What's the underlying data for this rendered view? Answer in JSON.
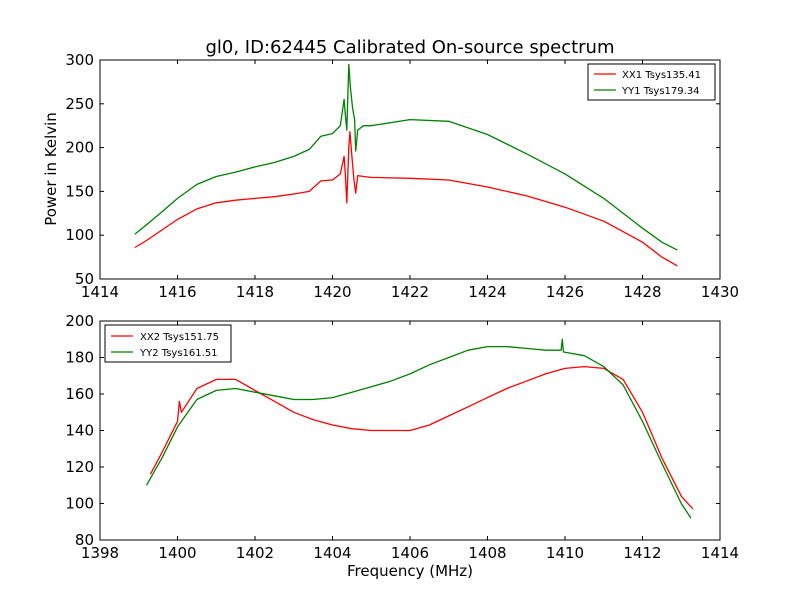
{
  "chart_data": [
    {
      "type": "line",
      "title": "gl0, ID:62445 Calibrated On-source spectrum",
      "xlabel": "",
      "ylabel": "Power in Kelvin",
      "xlim": [
        1414,
        1430
      ],
      "ylim": [
        50,
        300
      ],
      "xticks": [
        1414,
        1416,
        1418,
        1420,
        1422,
        1424,
        1426,
        1428,
        1430
      ],
      "yticks": [
        50,
        100,
        150,
        200,
        250,
        300
      ],
      "legend_position": "top-right",
      "series": [
        {
          "name": "XX1 Tsys135.41",
          "color": "#ff0000",
          "points": [
            [
              1414.9,
              86
            ],
            [
              1415.2,
              94
            ],
            [
              1415.5,
              103
            ],
            [
              1416.0,
              118
            ],
            [
              1416.5,
              130
            ],
            [
              1417.0,
              137
            ],
            [
              1417.5,
              140
            ],
            [
              1418.0,
              142
            ],
            [
              1418.5,
              144
            ],
            [
              1419.0,
              147
            ],
            [
              1419.4,
              150
            ],
            [
              1419.7,
              162
            ],
            [
              1420.0,
              163
            ],
            [
              1420.2,
              170
            ],
            [
              1420.3,
              190
            ],
            [
              1420.33,
              170
            ],
            [
              1420.37,
              137
            ],
            [
              1420.42,
              200
            ],
            [
              1420.45,
              218
            ],
            [
              1420.5,
              190
            ],
            [
              1420.55,
              165
            ],
            [
              1420.6,
              148
            ],
            [
              1420.65,
              168
            ],
            [
              1420.8,
              167
            ],
            [
              1421.0,
              166
            ],
            [
              1422.0,
              165
            ],
            [
              1423.0,
              163
            ],
            [
              1424.0,
              155
            ],
            [
              1425.0,
              145
            ],
            [
              1426.0,
              132
            ],
            [
              1427.0,
              116
            ],
            [
              1428.0,
              92
            ],
            [
              1428.5,
              75
            ],
            [
              1428.9,
              65
            ]
          ]
        },
        {
          "name": "YY1 Tsys179.34",
          "color": "#008000",
          "points": [
            [
              1414.9,
              101
            ],
            [
              1415.2,
              112
            ],
            [
              1415.5,
              123
            ],
            [
              1416.0,
              142
            ],
            [
              1416.5,
              158
            ],
            [
              1417.0,
              167
            ],
            [
              1417.5,
              172
            ],
            [
              1418.0,
              178
            ],
            [
              1418.5,
              183
            ],
            [
              1419.0,
              190
            ],
            [
              1419.4,
              198
            ],
            [
              1419.7,
              213
            ],
            [
              1420.0,
              216
            ],
            [
              1420.2,
              225
            ],
            [
              1420.3,
              255
            ],
            [
              1420.33,
              238
            ],
            [
              1420.37,
              220
            ],
            [
              1420.42,
              295
            ],
            [
              1420.46,
              270
            ],
            [
              1420.52,
              245
            ],
            [
              1420.57,
              232
            ],
            [
              1420.6,
              196
            ],
            [
              1420.65,
              220
            ],
            [
              1420.8,
              225
            ],
            [
              1421.0,
              225
            ],
            [
              1422.0,
              232
            ],
            [
              1423.0,
              230
            ],
            [
              1424.0,
              215
            ],
            [
              1425.0,
              193
            ],
            [
              1426.0,
              170
            ],
            [
              1427.0,
              142
            ],
            [
              1428.0,
              108
            ],
            [
              1428.5,
              92
            ],
            [
              1428.9,
              83
            ]
          ]
        }
      ]
    },
    {
      "type": "line",
      "title": "",
      "xlabel": "Frequency (MHz)",
      "ylabel": "",
      "xlim": [
        1398,
        1414
      ],
      "ylim": [
        80,
        200
      ],
      "xticks": [
        1398,
        1400,
        1402,
        1404,
        1406,
        1408,
        1410,
        1412,
        1414
      ],
      "yticks": [
        80,
        100,
        120,
        140,
        160,
        180,
        200
      ],
      "legend_position": "top-left",
      "series": [
        {
          "name": "XX2 Tsys151.75",
          "color": "#ff0000",
          "points": [
            [
              1399.3,
              116
            ],
            [
              1399.6,
              128
            ],
            [
              1400.0,
              145
            ],
            [
              1400.05,
              156
            ],
            [
              1400.1,
              150
            ],
            [
              1400.5,
              163
            ],
            [
              1401.0,
              168
            ],
            [
              1401.5,
              168
            ],
            [
              1402.0,
              162
            ],
            [
              1402.5,
              156
            ],
            [
              1403.0,
              150
            ],
            [
              1403.5,
              146
            ],
            [
              1404.0,
              143
            ],
            [
              1404.5,
              141
            ],
            [
              1405.0,
              140
            ],
            [
              1405.5,
              140
            ],
            [
              1406.0,
              140
            ],
            [
              1406.5,
              143
            ],
            [
              1407.0,
              148
            ],
            [
              1407.5,
              153
            ],
            [
              1408.0,
              158
            ],
            [
              1408.5,
              163
            ],
            [
              1409.0,
              167
            ],
            [
              1409.5,
              171
            ],
            [
              1410.0,
              174
            ],
            [
              1410.5,
              175
            ],
            [
              1411.0,
              174
            ],
            [
              1411.5,
              168
            ],
            [
              1412.0,
              150
            ],
            [
              1412.5,
              125
            ],
            [
              1413.0,
              104
            ],
            [
              1413.3,
              97
            ]
          ]
        },
        {
          "name": "YY2 Tsys161.51",
          "color": "#008000",
          "points": [
            [
              1399.2,
              110
            ],
            [
              1399.6,
              125
            ],
            [
              1400.0,
              142
            ],
            [
              1400.5,
              157
            ],
            [
              1401.0,
              162
            ],
            [
              1401.5,
              163
            ],
            [
              1402.0,
              161
            ],
            [
              1402.5,
              159
            ],
            [
              1403.0,
              157
            ],
            [
              1403.5,
              157
            ],
            [
              1404.0,
              158
            ],
            [
              1404.5,
              161
            ],
            [
              1405.0,
              164
            ],
            [
              1405.5,
              167
            ],
            [
              1406.0,
              171
            ],
            [
              1406.5,
              176
            ],
            [
              1407.0,
              180
            ],
            [
              1407.5,
              184
            ],
            [
              1408.0,
              186
            ],
            [
              1408.5,
              186
            ],
            [
              1409.0,
              185
            ],
            [
              1409.5,
              184
            ],
            [
              1409.9,
              184
            ],
            [
              1409.93,
              190
            ],
            [
              1409.96,
              183
            ],
            [
              1410.5,
              181
            ],
            [
              1411.0,
              175
            ],
            [
              1411.5,
              165
            ],
            [
              1412.0,
              145
            ],
            [
              1412.5,
              122
            ],
            [
              1413.0,
              100
            ],
            [
              1413.25,
              92
            ]
          ]
        }
      ]
    }
  ]
}
